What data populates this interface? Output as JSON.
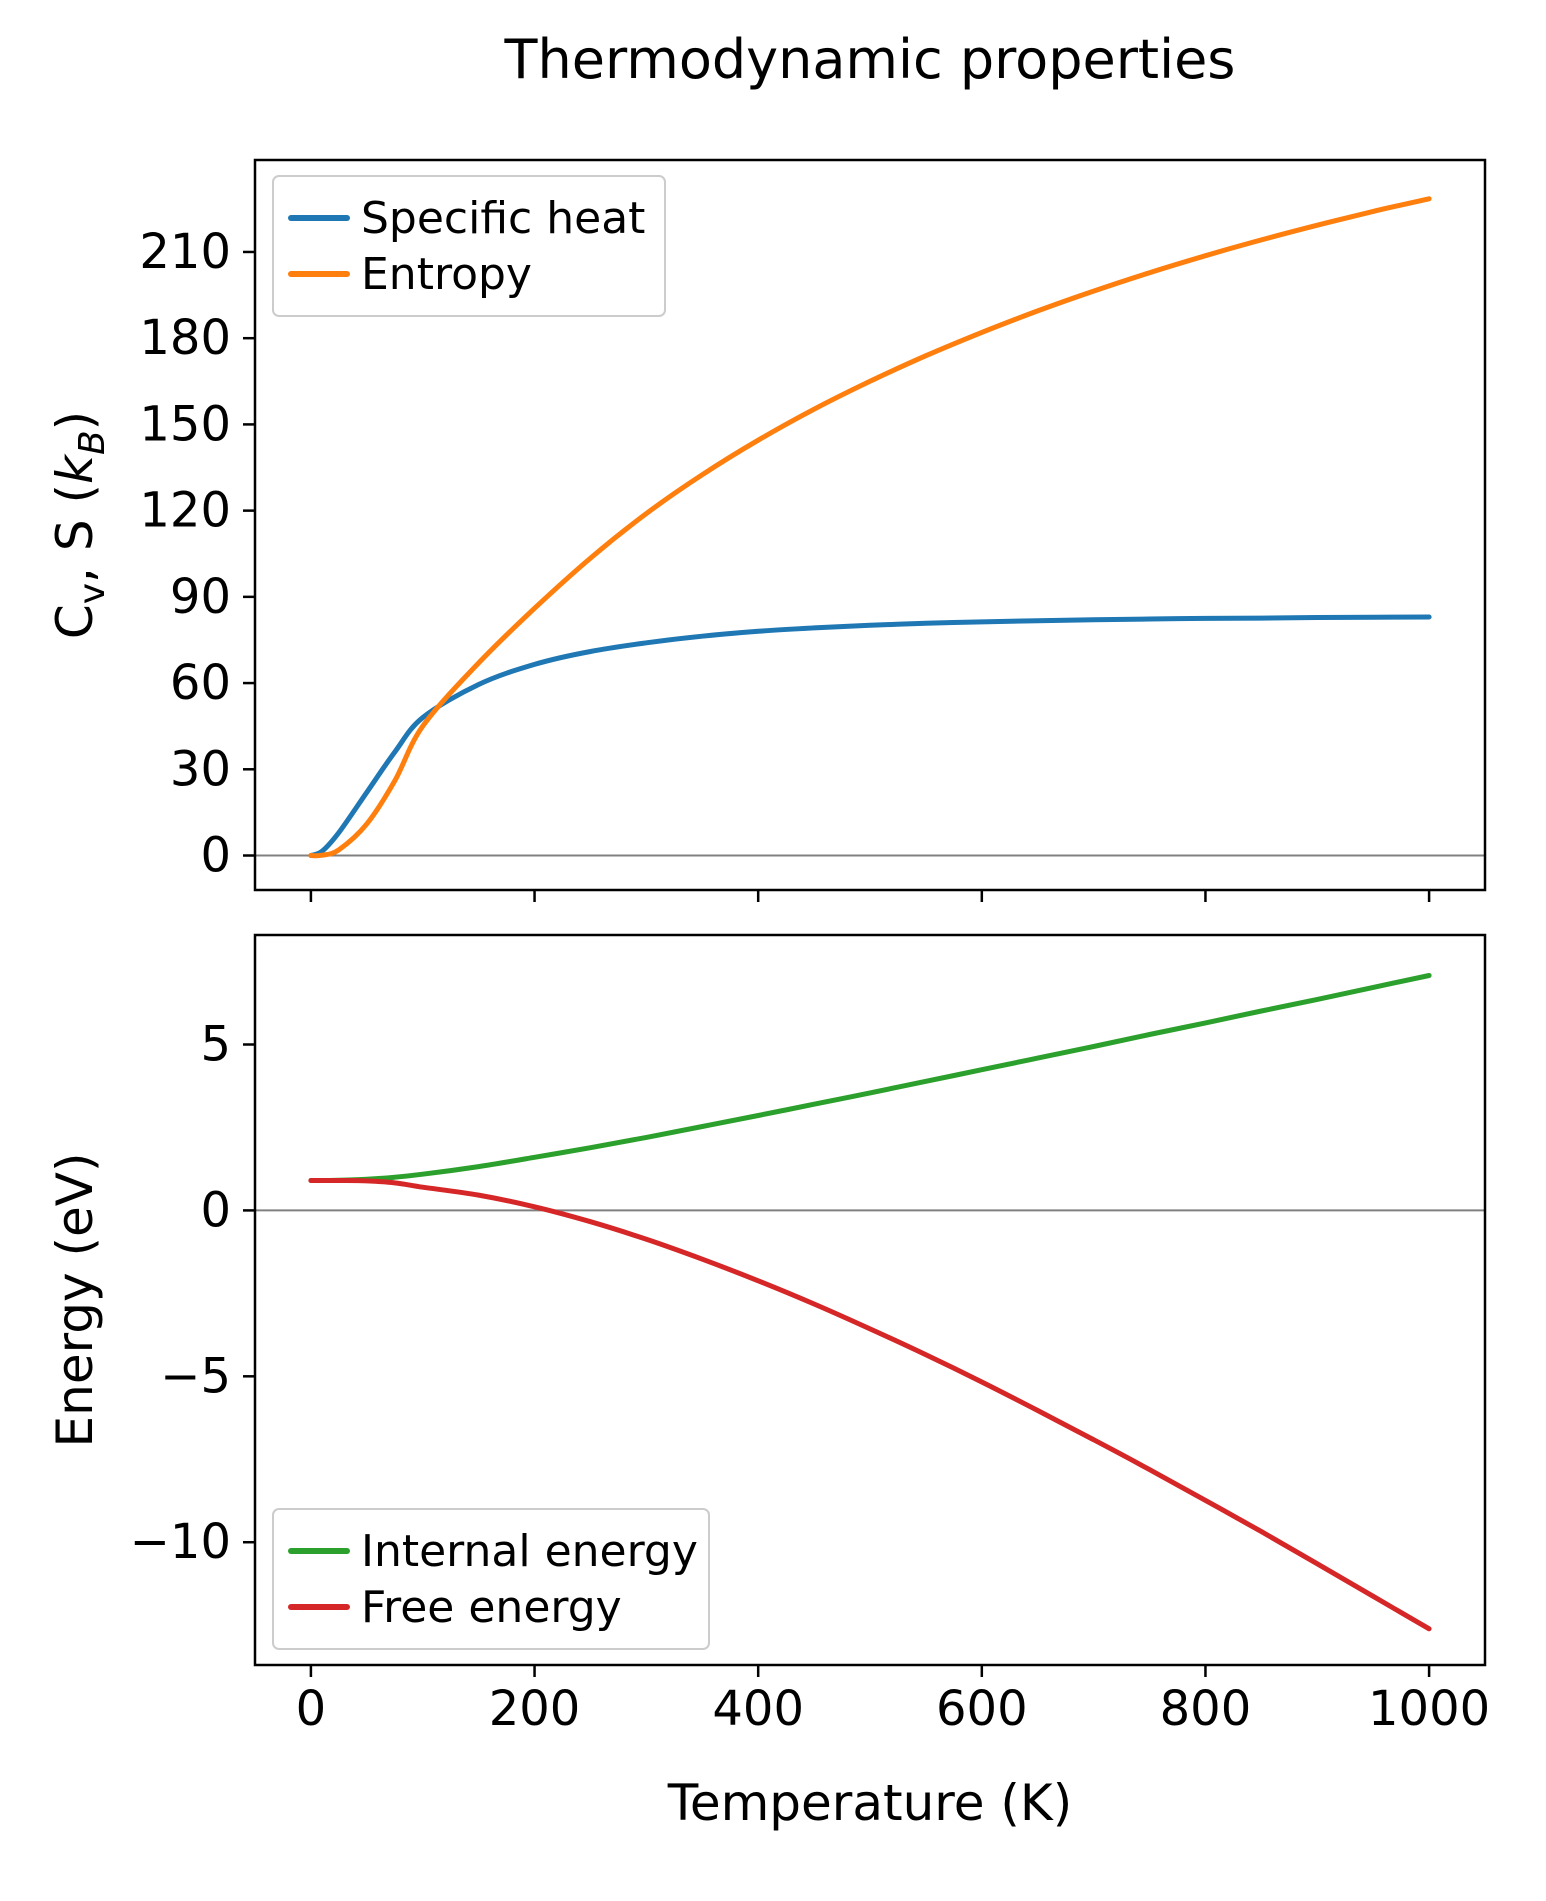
{
  "title": "Thermodynamic properties",
  "colors": {
    "specific_heat": "#1f77b4",
    "entropy": "#ff7f0e",
    "internal_energy": "#2ca02c",
    "free_energy": "#d62728",
    "zero_line": "#808080",
    "spine": "#000000",
    "legend_border": "#cccccc",
    "background": "#ffffff"
  },
  "chart_data": [
    {
      "type": "line",
      "title": "Thermodynamic properties",
      "xlabel": "",
      "ylabel": "Cv, S (kB)",
      "ylabel_parts": [
        {
          "text": "C"
        },
        {
          "text": "v",
          "sub": true
        },
        {
          "text": ", S ("
        },
        {
          "text": "k",
          "italic": true
        },
        {
          "text": "B",
          "sub": true,
          "italic": true
        },
        {
          "text": ")"
        }
      ],
      "xlim": [
        -50,
        1050
      ],
      "ylim": [
        -12,
        242
      ],
      "xticks": [
        0,
        200,
        400,
        600,
        800,
        1000
      ],
      "xtick_labels_visible": false,
      "yticks": [
        0,
        30,
        60,
        90,
        120,
        150,
        180,
        210
      ],
      "grid": false,
      "zero_line": true,
      "legend_position": "upper-left",
      "x": [
        0,
        10,
        25,
        50,
        75,
        100,
        150,
        200,
        250,
        300,
        350,
        400,
        450,
        500,
        550,
        600,
        650,
        700,
        750,
        800,
        850,
        900,
        950,
        1000
      ],
      "series": [
        {
          "name": "Specific heat",
          "color": "#1f77b4",
          "values": [
            0,
            1.5,
            8,
            22,
            36,
            48,
            59.5,
            66.5,
            71,
            74,
            76.3,
            78,
            79.2,
            80.1,
            80.8,
            81.3,
            81.7,
            82,
            82.3,
            82.5,
            82.6,
            82.8,
            82.9,
            83
          ]
        },
        {
          "name": "Entropy",
          "color": "#ff7f0e",
          "values": [
            0,
            0.1,
            2,
            11,
            26,
            45,
            67,
            86,
            103.5,
            119,
            132.5,
            144.5,
            155.3,
            165,
            173.9,
            182,
            189.5,
            196.4,
            202.8,
            208.7,
            214.2,
            219.3,
            224.1,
            228.5
          ]
        }
      ]
    },
    {
      "type": "line",
      "title": "",
      "xlabel": "Temperature (K)",
      "ylabel": "Energy (eV)",
      "ylabel_parts": [
        {
          "text": "Energy (eV)"
        }
      ],
      "xlim": [
        -50,
        1050
      ],
      "ylim": [
        -13.7,
        8.3
      ],
      "xticks": [
        0,
        200,
        400,
        600,
        800,
        1000
      ],
      "xtick_labels_visible": true,
      "yticks": [
        -10,
        -5,
        0,
        5
      ],
      "grid": false,
      "zero_line": true,
      "legend_position": "lower-left",
      "x": [
        0,
        10,
        25,
        50,
        75,
        100,
        150,
        200,
        250,
        300,
        350,
        400,
        450,
        500,
        550,
        600,
        650,
        700,
        750,
        800,
        850,
        900,
        950,
        1000
      ],
      "series": [
        {
          "name": "Internal energy",
          "color": "#2ca02c",
          "values": [
            0.9,
            0.9,
            0.91,
            0.94,
            1.0,
            1.09,
            1.32,
            1.6,
            1.89,
            2.2,
            2.53,
            2.86,
            3.2,
            3.54,
            3.89,
            4.24,
            4.59,
            4.94,
            5.3,
            5.65,
            6.01,
            6.36,
            6.72,
            7.08
          ]
        },
        {
          "name": "Free energy",
          "color": "#d62728",
          "values": [
            0.9,
            0.9,
            0.9,
            0.89,
            0.83,
            0.7,
            0.46,
            0.11,
            -0.34,
            -0.87,
            -1.47,
            -2.12,
            -2.82,
            -3.57,
            -4.35,
            -5.17,
            -6.03,
            -6.91,
            -7.81,
            -8.74,
            -9.68,
            -10.65,
            -11.63,
            -12.61
          ]
        }
      ]
    }
  ]
}
